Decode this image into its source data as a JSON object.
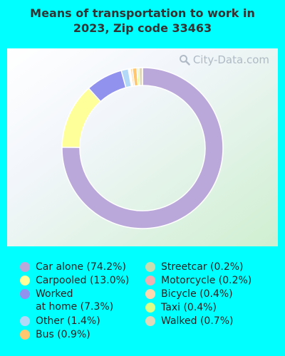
{
  "title_lines": [
    "Means of transportation to work in",
    "2023, Zip code 33463"
  ],
  "watermark": "City-Data.com",
  "chart_data": {
    "type": "pie",
    "subtype": "donut",
    "title": "Means of transportation to work in 2023, Zip code 33463",
    "legend_position": "bottom",
    "slices": [
      {
        "label": "Car alone (74.2%)",
        "value": 74.2,
        "color": "#BBA8DB"
      },
      {
        "label": "Carpooled (13.0%)",
        "value": 13.0,
        "color": "#FFFF99"
      },
      {
        "label": "Worked\nat home (7.3%)",
        "value": 7.3,
        "color": "#9191EE"
      },
      {
        "label": "Other (1.4%)",
        "value": 1.4,
        "color": "#B3D9F9"
      },
      {
        "label": "Streetcar (0.2%)",
        "value": 0.2,
        "color": "#C8DDB0"
      },
      {
        "label": "Motorcycle (0.2%)",
        "value": 0.2,
        "color": "#EEB0B0"
      },
      {
        "label": "Bicycle (0.4%)",
        "value": 0.4,
        "color": "#FFD8B0"
      },
      {
        "label": "Bus (0.9%)",
        "value": 0.9,
        "color": "#FFC870"
      },
      {
        "label": "Taxi (0.4%)",
        "value": 0.4,
        "color": "#DDFF88"
      },
      {
        "label": "Walked (0.7%)",
        "value": 0.7,
        "color": "#E0D8B8"
      }
    ],
    "legend_columns": [
      [
        "Car alone (74.2%)",
        "Carpooled (13.0%)",
        "Worked\nat home (7.3%)",
        "Other (1.4%)",
        "Bus (0.9%)"
      ],
      [
        "Streetcar (0.2%)",
        "Motorcycle (0.2%)",
        "Bicycle (0.4%)",
        "Taxi (0.4%)",
        "Walked (0.7%)"
      ]
    ]
  }
}
